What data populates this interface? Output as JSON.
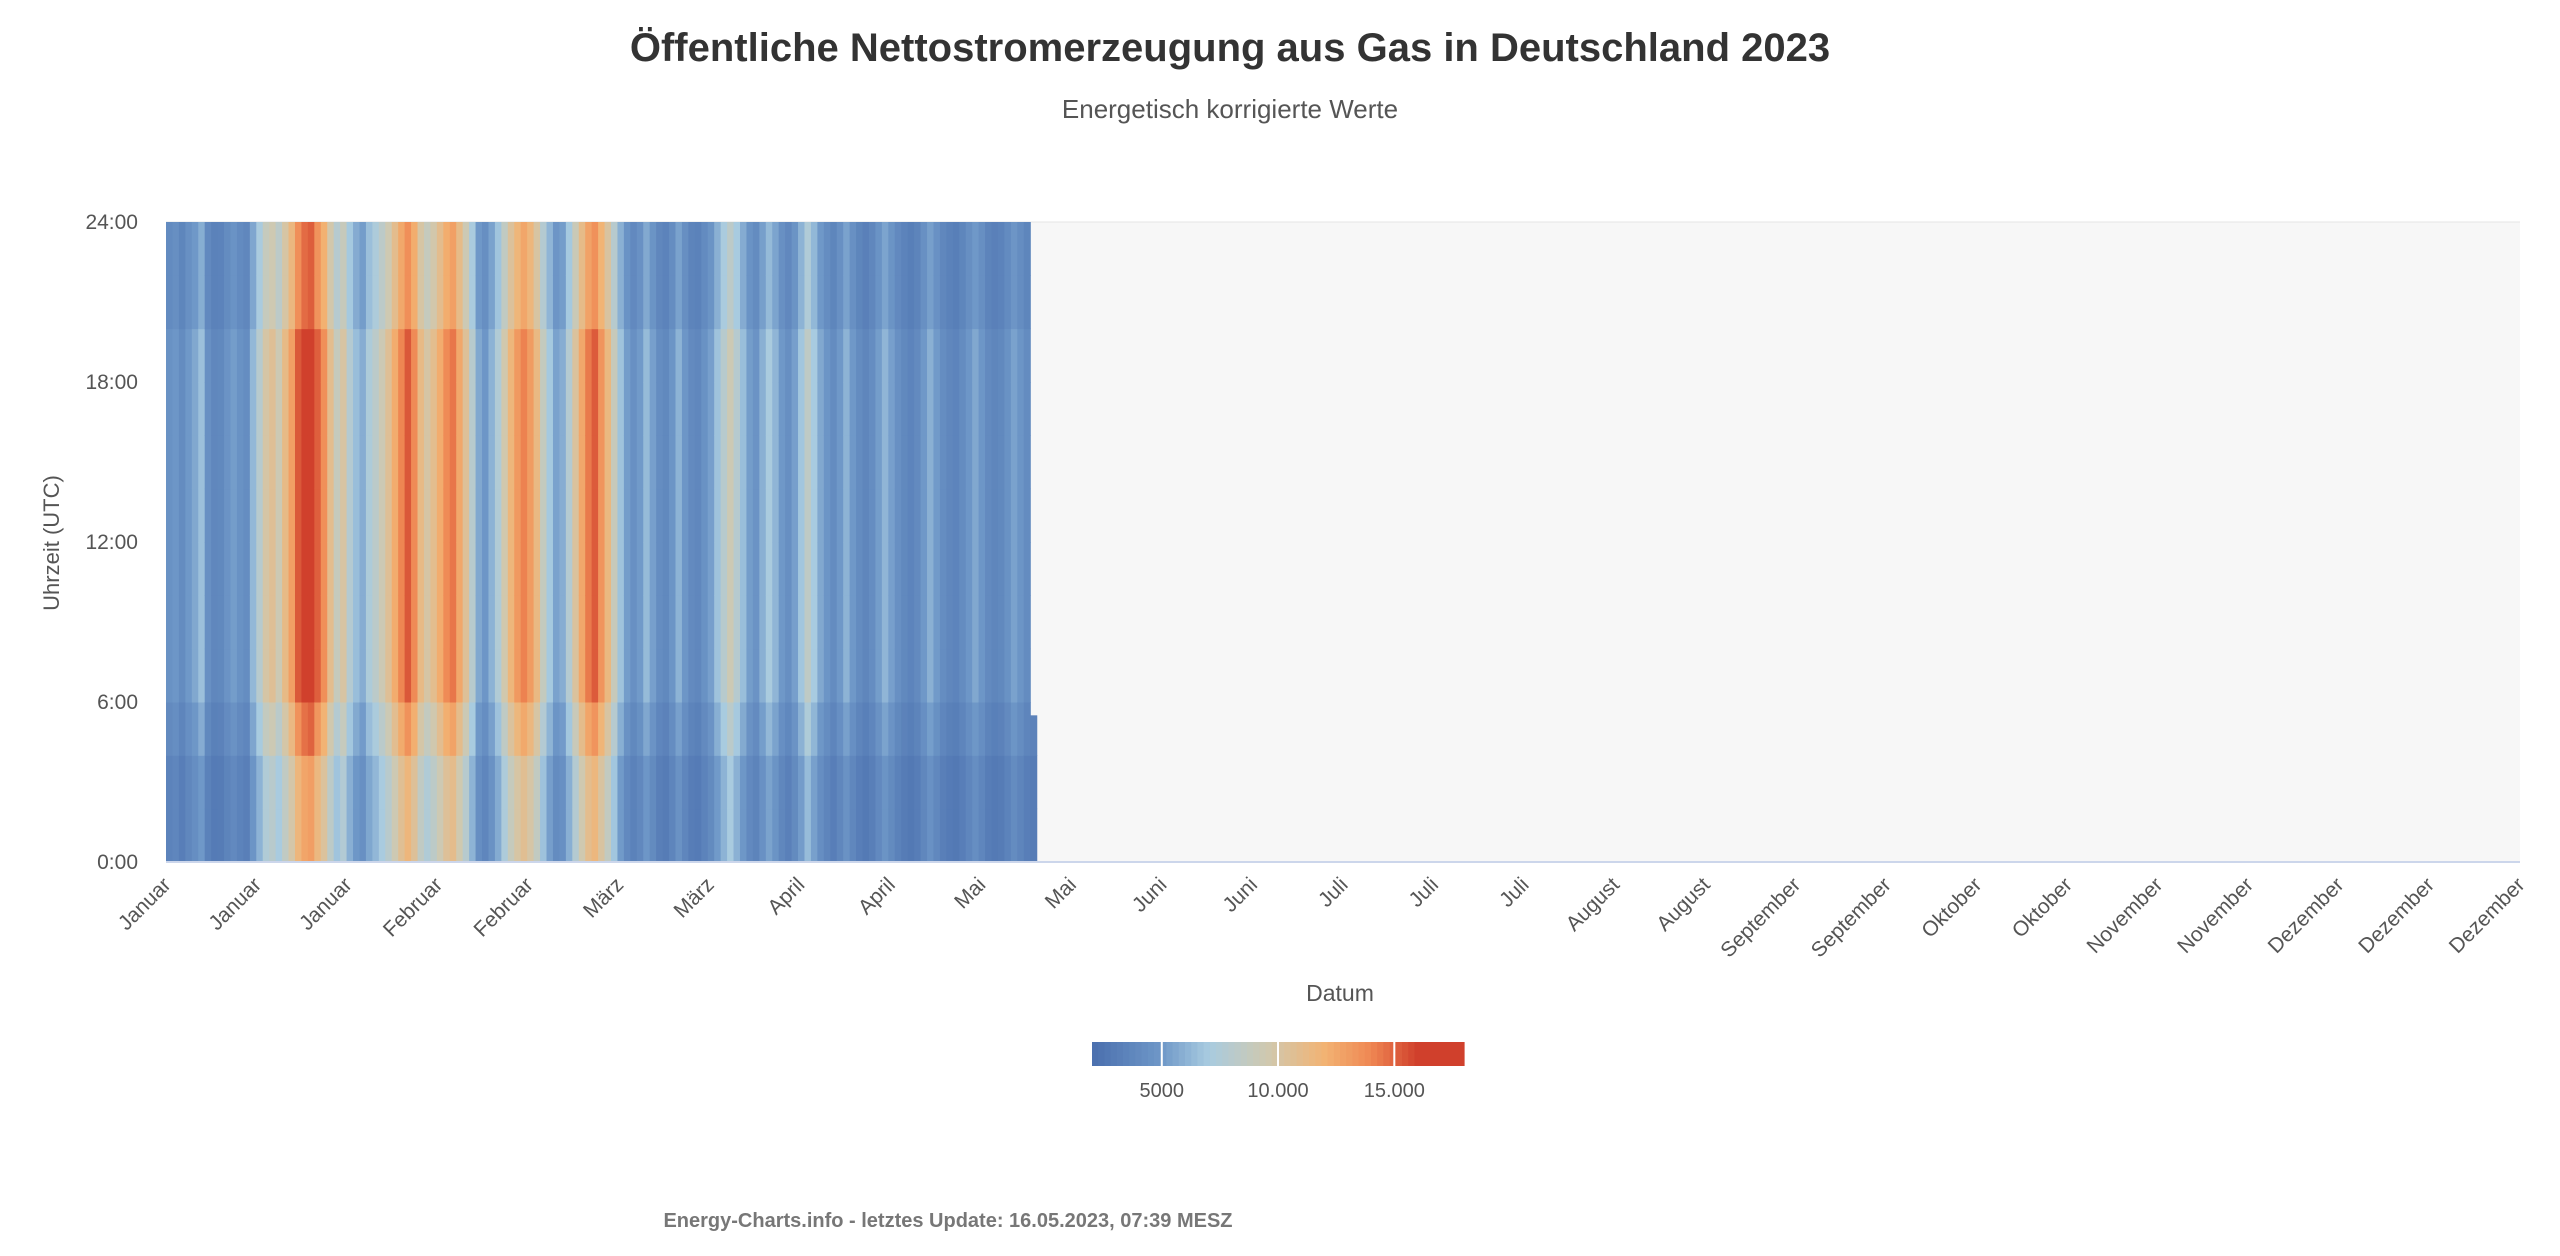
{
  "chart_data": {
    "type": "heatmap",
    "title": "Öffentliche Nettostromerzeugung aus Gas in Deutschland 2023",
    "subtitle": "Energetisch korrigierte Werte",
    "xlabel": "Datum",
    "ylabel": "Uhrzeit (UTC)",
    "y_ticks": [
      "0:00",
      "6:00",
      "12:00",
      "18:00",
      "24:00"
    ],
    "y_range": [
      0,
      24
    ],
    "x_ticks": [
      "Januar",
      "Januar",
      "Januar",
      "Februar",
      "Februar",
      "März",
      "März",
      "April",
      "April",
      "Mai",
      "Mai",
      "Juni",
      "Juni",
      "Juli",
      "Juli",
      "Juli",
      "August",
      "August",
      "September",
      "September",
      "Oktober",
      "Oktober",
      "November",
      "November",
      "Dezember",
      "Dezember",
      "Dezember"
    ],
    "days_in_year": 365,
    "data_days_complete": 135,
    "last_day_hours_covered": 5.5,
    "daily_levels": [
      4200,
      4500,
      3800,
      4600,
      5200,
      6100,
      4100,
      3500,
      3600,
      4300,
      4800,
      4200,
      3900,
      5800,
      7400,
      9200,
      9800,
      8600,
      10400,
      12000,
      14200,
      15400,
      15800,
      14000,
      12600,
      10100,
      8200,
      9300,
      7200,
      6000,
      5400,
      6800,
      7600,
      8600,
      9800,
      11400,
      13000,
      14200,
      12800,
      10400,
      9200,
      10100,
      11400,
      12800,
      13400,
      11600,
      9700,
      7400,
      5200,
      4500,
      5600,
      7000,
      8900,
      10800,
      12200,
      13100,
      12100,
      10500,
      8100,
      6400,
      5000,
      5400,
      7200,
      9500,
      11600,
      13300,
      14100,
      12400,
      10600,
      8300,
      6200,
      4800,
      4100,
      4700,
      5900,
      4900,
      3900,
      3600,
      4400,
      5600,
      4500,
      3700,
      3500,
      4200,
      4900,
      6200,
      7400,
      8600,
      7300,
      6000,
      4800,
      4300,
      5500,
      6600,
      5700,
      4600,
      4000,
      4900,
      6300,
      7800,
      6500,
      5200,
      4400,
      3800,
      4600,
      5600,
      4600,
      3800,
      3400,
      3900,
      4800,
      5700,
      4900,
      4100,
      3600,
      3300,
      3700,
      4600,
      5500,
      4700,
      3900,
      3500,
      3300,
      3800,
      4500,
      5200,
      4500,
      3700,
      3400,
      3600,
      4200,
      5000,
      4400,
      3800,
      3600
    ],
    "colorscale": [
      {
        "value": 2000,
        "color": "#4a6fae"
      },
      {
        "value": 5000,
        "color": "#6f98c8"
      },
      {
        "value": 7000,
        "color": "#a8cbe0"
      },
      {
        "value": 9500,
        "color": "#cfc9b0"
      },
      {
        "value": 12000,
        "color": "#f2b373"
      },
      {
        "value": 14000,
        "color": "#ef8753"
      },
      {
        "value": 16000,
        "color": "#d0402c"
      }
    ],
    "legend": {
      "min": 2000,
      "max": 18000,
      "labels": [
        "5000",
        "10.000",
        "15.000"
      ],
      "label_values": [
        5000,
        10000,
        15000
      ],
      "placement": "bottom-center"
    },
    "grid": false
  },
  "credits": "Energy-Charts.info - letztes Update: 16.05.2023, 07:39 MESZ"
}
